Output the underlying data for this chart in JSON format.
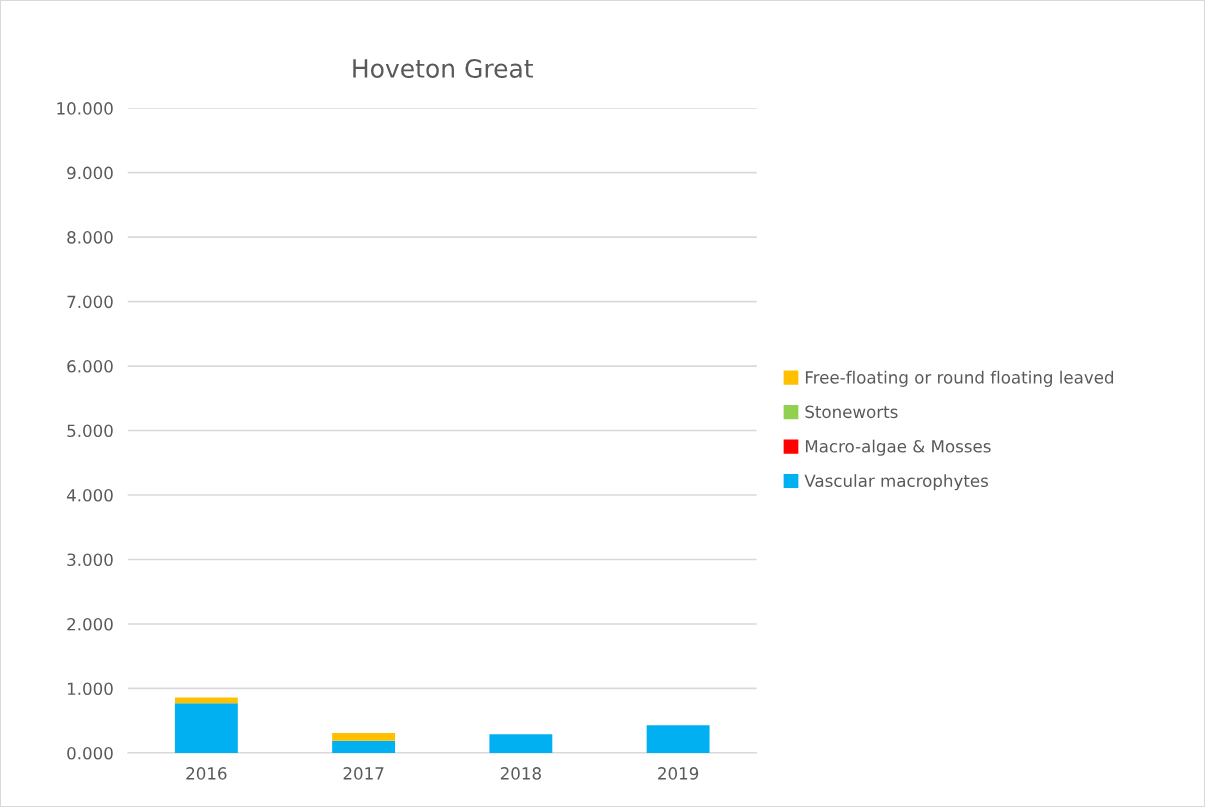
{
  "chart_data": {
    "type": "bar",
    "title": "Hoveton Great",
    "categories": [
      "2016",
      "2017",
      "2018",
      "2019"
    ],
    "stacked": true,
    "series": [
      {
        "name": "Vascular macrophytes",
        "color": "#00b0f0",
        "values": [
          0.77,
          0.19,
          0.29,
          0.43
        ]
      },
      {
        "name": "Macro-algae & Mosses",
        "color": "#ff0000",
        "values": [
          0,
          0,
          0,
          0
        ]
      },
      {
        "name": "Stoneworts",
        "color": "#92d050",
        "values": [
          0,
          0,
          0,
          0
        ]
      },
      {
        "name": "Free-floating or round floating leaved",
        "color": "#ffc000",
        "values": [
          0.09,
          0.12,
          0,
          0
        ]
      }
    ],
    "ylim": [
      0,
      10
    ],
    "yticks": [
      {
        "value": 0,
        "label": "0.000"
      },
      {
        "value": 1,
        "label": "1.000"
      },
      {
        "value": 2,
        "label": "2.000"
      },
      {
        "value": 3,
        "label": "3.000"
      },
      {
        "value": 4,
        "label": "4.000"
      },
      {
        "value": 5,
        "label": "5.000"
      },
      {
        "value": 6,
        "label": "6.000"
      },
      {
        "value": 7,
        "label": "7.000"
      },
      {
        "value": 8,
        "label": "8.000"
      },
      {
        "value": 9,
        "label": "9.000"
      },
      {
        "value": 10,
        "label": "10.000"
      }
    ],
    "grid": "y",
    "legend": "right"
  }
}
